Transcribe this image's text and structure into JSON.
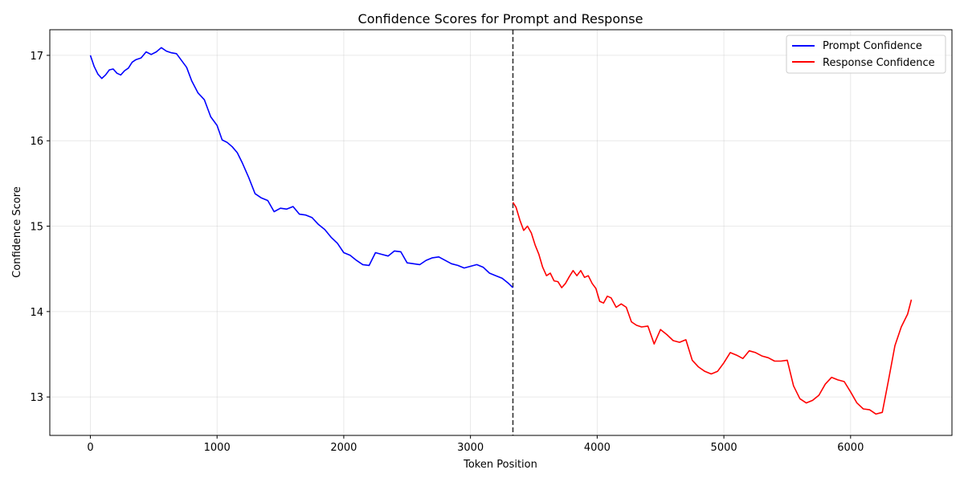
{
  "chart_data": {
    "type": "line",
    "title": "Confidence Scores for Prompt and Response",
    "xlabel": "Token Position",
    "ylabel": "Confidence Score",
    "xlim": [
      -320,
      6800
    ],
    "ylim": [
      12.55,
      17.3
    ],
    "xticks": [
      0,
      1000,
      2000,
      3000,
      4000,
      5000,
      6000
    ],
    "yticks": [
      13,
      14,
      15,
      16,
      17
    ],
    "grid": true,
    "legend_position": "top-right",
    "divider_x": 3335,
    "series": [
      {
        "name": "Prompt Confidence",
        "color": "#0000ff",
        "x": [
          0,
          30,
          60,
          90,
          120,
          150,
          180,
          210,
          240,
          270,
          300,
          330,
          360,
          400,
          440,
          480,
          520,
          560,
          600,
          640,
          680,
          720,
          760,
          800,
          850,
          900,
          950,
          1000,
          1040,
          1080,
          1120,
          1160,
          1200,
          1250,
          1300,
          1350,
          1400,
          1450,
          1500,
          1550,
          1600,
          1650,
          1700,
          1750,
          1800,
          1850,
          1900,
          1950,
          2000,
          2050,
          2100,
          2150,
          2200,
          2250,
          2300,
          2350,
          2400,
          2450,
          2500,
          2550,
          2600,
          2650,
          2700,
          2750,
          2800,
          2850,
          2900,
          2950,
          3000,
          3050,
          3100,
          3150,
          3200,
          3250,
          3300,
          3335
        ],
        "values": [
          17.0,
          16.87,
          16.78,
          16.73,
          16.77,
          16.83,
          16.84,
          16.79,
          16.77,
          16.82,
          16.85,
          16.92,
          16.95,
          16.97,
          17.04,
          17.01,
          17.04,
          17.09,
          17.05,
          17.03,
          17.02,
          16.94,
          16.86,
          16.7,
          16.56,
          16.48,
          16.28,
          16.18,
          16.01,
          15.98,
          15.93,
          15.86,
          15.74,
          15.57,
          15.38,
          15.33,
          15.3,
          15.17,
          15.21,
          15.2,
          15.23,
          15.14,
          15.13,
          15.1,
          15.02,
          14.96,
          14.87,
          14.8,
          14.69,
          14.66,
          14.6,
          14.55,
          14.54,
          14.69,
          14.67,
          14.65,
          14.71,
          14.7,
          14.57,
          14.56,
          14.55,
          14.6,
          14.63,
          14.64,
          14.6,
          14.56,
          14.54,
          14.51,
          14.53,
          14.55,
          14.52,
          14.45,
          14.42,
          14.39,
          14.33,
          14.28
        ]
      },
      {
        "name": "Response Confidence",
        "color": "#ff0000",
        "x": [
          3335,
          3360,
          3390,
          3420,
          3450,
          3480,
          3510,
          3540,
          3570,
          3600,
          3630,
          3660,
          3690,
          3720,
          3750,
          3780,
          3810,
          3840,
          3870,
          3900,
          3930,
          3960,
          3990,
          4020,
          4050,
          4080,
          4110,
          4150,
          4190,
          4230,
          4270,
          4310,
          4350,
          4400,
          4450,
          4500,
          4550,
          4600,
          4650,
          4700,
          4750,
          4800,
          4850,
          4900,
          4950,
          5000,
          5050,
          5100,
          5150,
          5200,
          5250,
          5300,
          5350,
          5400,
          5450,
          5500,
          5550,
          5600,
          5650,
          5700,
          5750,
          5800,
          5850,
          5900,
          5950,
          6000,
          6050,
          6100,
          6150,
          6200,
          6250,
          6300,
          6350,
          6400,
          6450,
          6480
        ],
        "values": [
          15.28,
          15.22,
          15.07,
          14.95,
          15.0,
          14.92,
          14.78,
          14.67,
          14.52,
          14.42,
          14.45,
          14.36,
          14.35,
          14.28,
          14.33,
          14.41,
          14.48,
          14.42,
          14.48,
          14.4,
          14.42,
          14.33,
          14.27,
          14.12,
          14.1,
          14.18,
          14.16,
          14.05,
          14.09,
          14.05,
          13.88,
          13.84,
          13.82,
          13.83,
          13.62,
          13.79,
          13.73,
          13.66,
          13.64,
          13.67,
          13.43,
          13.35,
          13.3,
          13.27,
          13.3,
          13.4,
          13.52,
          13.49,
          13.45,
          13.54,
          13.52,
          13.48,
          13.46,
          13.42,
          13.42,
          13.43,
          13.13,
          12.98,
          12.93,
          12.96,
          13.02,
          13.15,
          13.23,
          13.2,
          13.18,
          13.06,
          12.93,
          12.86,
          12.85,
          12.8,
          12.82,
          13.2,
          13.6,
          13.82,
          13.97,
          14.14
        ]
      }
    ]
  }
}
